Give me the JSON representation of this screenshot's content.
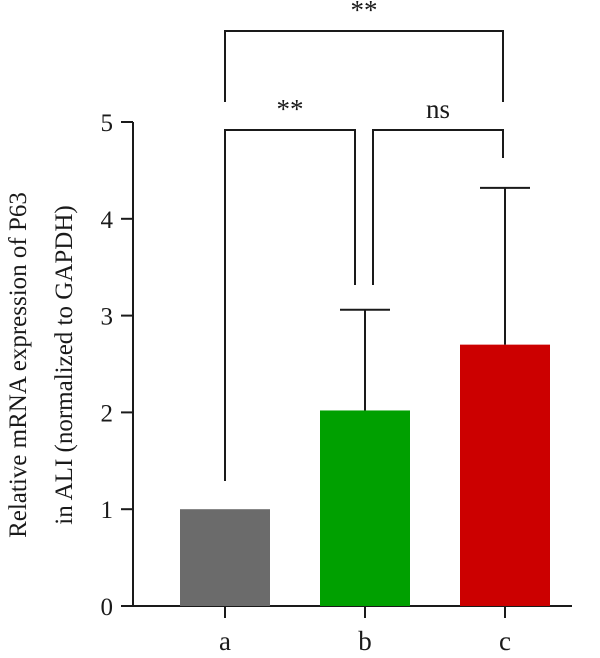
{
  "chart_data": {
    "type": "bar",
    "categories": [
      "a",
      "b",
      "c"
    ],
    "values": [
      1.0,
      2.02,
      2.7
    ],
    "error_upper": [
      1.0,
      3.06,
      4.32
    ],
    "colors": [
      "#6b6b6b",
      "#00a000",
      "#cc0000"
    ],
    "ylabel_line1": "Relative mRNA expression of  P63",
    "ylabel_line2": "in ALI (normalized to GAPDH)",
    "xlabel": "",
    "ylim": [
      0,
      5
    ],
    "yticks": [
      0,
      1,
      2,
      3,
      4,
      5
    ],
    "yticks_labels": [
      "0",
      "1",
      "2",
      "3",
      "4",
      "5"
    ],
    "grid": false,
    "significance": [
      {
        "from": "a",
        "to": "b",
        "label": "**"
      },
      {
        "from": "b",
        "to": "c",
        "label": "ns"
      },
      {
        "from": "a",
        "to": "c",
        "label": "**"
      }
    ]
  }
}
